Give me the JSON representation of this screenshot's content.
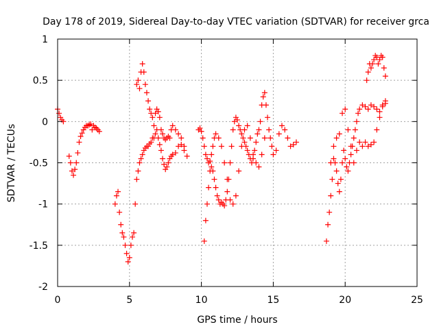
{
  "chart_data": {
    "type": "scatter",
    "title": "Day 178 of 2019, Sidereal Day-to-day VTEC variation (SDTVAR) for receiver grca",
    "xlabel": "GPS time / hours",
    "ylabel": "SDTVAR / TECUs",
    "xlim": [
      0,
      25
    ],
    "ylim": [
      -2,
      1
    ],
    "x_ticks": [
      0,
      5,
      10,
      15,
      20,
      25
    ],
    "x_tick_labels": [
      "0",
      "5",
      "10",
      "15",
      "20",
      "25"
    ],
    "y_ticks": [
      -2,
      -1.5,
      -1,
      -0.5,
      0,
      0.5,
      1
    ],
    "y_tick_labels": [
      "-2",
      "-1.5",
      "-1",
      "-0.5",
      "0",
      "0.5",
      "1"
    ],
    "grid": true,
    "marker": "+",
    "color": "#ff0000",
    "series": [
      {
        "name": "s1",
        "x": [
          0.0,
          0.1,
          0.2,
          0.3,
          0.4
        ],
        "y": [
          0.15,
          0.1,
          0.05,
          0.02,
          0.0
        ]
      },
      {
        "name": "s2",
        "x": [
          0.8,
          0.9,
          1.0,
          1.1,
          1.2,
          1.3,
          1.4,
          1.5,
          1.6,
          1.7,
          1.8,
          1.9,
          2.0,
          2.1,
          2.2,
          2.3,
          2.4,
          2.5,
          2.6,
          2.7,
          2.8,
          2.9
        ],
        "y": [
          -0.42,
          -0.5,
          -0.6,
          -0.65,
          -0.58,
          -0.5,
          -0.38,
          -0.25,
          -0.18,
          -0.14,
          -0.1,
          -0.07,
          -0.05,
          -0.05,
          -0.04,
          -0.03,
          -0.1,
          -0.05,
          -0.07,
          -0.08,
          -0.1,
          -0.12
        ]
      },
      {
        "name": "s3",
        "x": [
          4.0,
          4.1,
          4.2,
          4.3,
          4.4,
          4.5,
          4.6,
          4.7,
          4.8,
          4.9,
          5.0,
          5.1,
          5.2,
          5.3,
          5.4,
          5.5,
          5.6,
          5.7,
          5.8,
          5.9,
          6.0,
          6.1,
          6.2,
          6.3,
          6.4,
          6.5,
          6.6,
          6.7,
          6.8,
          6.9,
          7.0,
          7.1,
          7.2,
          7.3,
          7.4,
          7.5,
          7.6,
          7.7,
          7.8,
          7.9,
          8.0,
          8.2,
          8.4,
          8.6,
          8.8,
          9.0
        ],
        "y": [
          -1.0,
          -0.9,
          -0.85,
          -1.1,
          -1.25,
          -1.35,
          -1.4,
          -1.5,
          -1.6,
          -1.7,
          -1.65,
          -1.5,
          -1.4,
          -1.35,
          -1.0,
          -0.7,
          -0.6,
          -0.5,
          -0.45,
          -0.4,
          -0.35,
          -0.32,
          -0.3,
          -0.3,
          -0.27,
          -0.25,
          -0.2,
          -0.2,
          -0.15,
          -0.1,
          -0.2,
          -0.28,
          -0.35,
          -0.45,
          -0.52,
          -0.58,
          -0.55,
          -0.5,
          -0.45,
          -0.42,
          -0.4,
          -0.38,
          -0.3,
          -0.28,
          -0.35,
          -0.42
        ]
      },
      {
        "name": "s4",
        "x": [
          5.5,
          5.6,
          5.7,
          5.8,
          5.9,
          6.0,
          6.1,
          6.2,
          6.3,
          6.4,
          6.5,
          6.6,
          6.7,
          6.8,
          6.9,
          7.0,
          7.1,
          7.2,
          7.3,
          7.4,
          7.5,
          7.6,
          7.7,
          7.8,
          7.9,
          8.0,
          8.2,
          8.4,
          8.6,
          8.8
        ],
        "y": [
          0.45,
          0.5,
          0.4,
          0.6,
          0.7,
          0.6,
          0.45,
          0.35,
          0.25,
          0.15,
          0.1,
          0.05,
          -0.05,
          0.1,
          0.15,
          0.12,
          0.05,
          -0.1,
          -0.15,
          -0.2,
          -0.22,
          -0.2,
          -0.18,
          -0.2,
          -0.1,
          -0.05,
          -0.1,
          -0.15,
          -0.2,
          -0.3
        ]
      },
      {
        "name": "s5",
        "x": [
          9.8,
          9.9,
          10.0,
          10.1,
          10.2,
          10.3,
          10.4,
          10.5,
          10.6,
          10.7,
          10.8,
          10.9,
          11.0,
          11.1,
          11.2,
          11.3,
          11.4,
          11.5,
          11.6,
          11.7,
          11.8,
          11.9,
          12.0,
          12.1,
          12.2,
          12.3,
          12.4,
          12.5,
          12.6,
          12.7,
          12.8,
          12.9,
          13.0,
          13.1,
          13.2,
          13.3,
          13.4,
          13.5,
          13.6,
          13.7,
          13.8,
          13.9,
          14.0,
          14.1,
          14.2,
          14.3,
          14.4,
          14.5,
          14.6,
          14.7,
          14.8,
          14.9,
          15.0,
          15.2,
          15.4,
          15.6,
          15.8,
          16.0,
          16.2,
          16.4,
          16.6
        ],
        "y": [
          -0.1,
          -0.08,
          -0.12,
          -0.2,
          -0.3,
          -0.4,
          -0.45,
          -0.5,
          -0.48,
          -0.55,
          -0.6,
          -0.7,
          -0.8,
          -0.9,
          -0.95,
          -1.0,
          -0.98,
          -1.0,
          -1.02,
          -0.95,
          -0.85,
          -0.7,
          -0.5,
          -0.3,
          -0.1,
          0.0,
          0.05,
          0.02,
          -0.05,
          -0.1,
          -0.15,
          -0.2,
          -0.25,
          -0.3,
          -0.35,
          -0.4,
          -0.45,
          -0.5,
          -0.45,
          -0.35,
          -0.25,
          -0.15,
          -0.1,
          0.0,
          0.2,
          0.3,
          0.35,
          0.2,
          0.05,
          -0.1,
          -0.2,
          -0.3,
          -0.4,
          -0.35,
          -0.15,
          -0.05,
          -0.1,
          -0.2,
          -0.3,
          -0.28,
          -0.25
        ]
      },
      {
        "name": "s6",
        "x": [
          10.2,
          10.3,
          10.4,
          10.5,
          10.6,
          10.7,
          10.8,
          10.9,
          11.0,
          11.2,
          11.4,
          11.6,
          11.8,
          12.0,
          12.2,
          12.4,
          12.6,
          12.8,
          13.0,
          13.2,
          13.4,
          13.6,
          13.8,
          14.0,
          14.2,
          14.4
        ],
        "y": [
          -1.45,
          -1.2,
          -1.0,
          -0.8,
          -0.6,
          -0.4,
          -0.3,
          -0.2,
          -0.15,
          -0.2,
          -0.3,
          -0.5,
          -0.7,
          -0.95,
          -1.0,
          -0.9,
          -0.6,
          -0.3,
          -0.1,
          -0.05,
          -0.2,
          -0.4,
          -0.5,
          -0.55,
          -0.4,
          -0.2
        ]
      },
      {
        "name": "s7",
        "x": [
          18.7,
          18.8,
          18.9,
          19.0,
          19.1,
          19.2,
          19.3,
          19.4,
          19.5,
          19.6,
          19.7,
          19.8,
          19.9,
          20.0,
          20.1,
          20.2,
          20.3,
          20.4,
          20.5,
          20.6,
          20.7,
          20.8,
          20.9,
          21.0,
          21.2,
          21.4,
          21.6,
          21.8,
          22.0,
          22.2,
          22.4,
          22.6,
          22.8
        ],
        "y": [
          -1.45,
          -1.25,
          -1.1,
          -0.9,
          -0.7,
          -0.45,
          -0.5,
          -0.6,
          -0.75,
          -0.85,
          -0.7,
          -0.5,
          -0.35,
          -0.45,
          -0.55,
          -0.6,
          -0.5,
          -0.4,
          -0.3,
          -0.2,
          -0.1,
          0.0,
          0.1,
          0.15,
          0.2,
          0.18,
          0.15,
          0.2,
          0.18,
          0.15,
          0.12,
          0.2,
          0.25
        ]
      },
      {
        "name": "s8",
        "x": [
          19.0,
          19.2,
          19.4,
          19.6,
          19.8,
          20.0,
          20.2,
          20.4,
          20.6,
          20.8,
          21.0,
          21.2,
          21.4,
          21.6,
          21.8,
          22.0,
          22.2,
          22.4,
          22.6,
          22.8
        ],
        "y": [
          -0.5,
          -0.3,
          -0.2,
          -0.15,
          0.1,
          0.15,
          -0.1,
          -0.3,
          -0.5,
          -0.35,
          -0.25,
          -0.3,
          -0.25,
          -0.3,
          -0.28,
          -0.25,
          -0.1,
          0.05,
          0.18,
          0.22
        ]
      },
      {
        "name": "s9",
        "x": [
          21.5,
          21.6,
          21.7,
          21.8,
          21.9,
          22.0,
          22.1,
          22.2,
          22.3,
          22.4,
          22.5,
          22.6,
          22.7,
          22.8
        ],
        "y": [
          0.5,
          0.6,
          0.7,
          0.65,
          0.7,
          0.75,
          0.8,
          0.78,
          0.7,
          0.75,
          0.8,
          0.78,
          0.65,
          0.55
        ]
      }
    ]
  }
}
